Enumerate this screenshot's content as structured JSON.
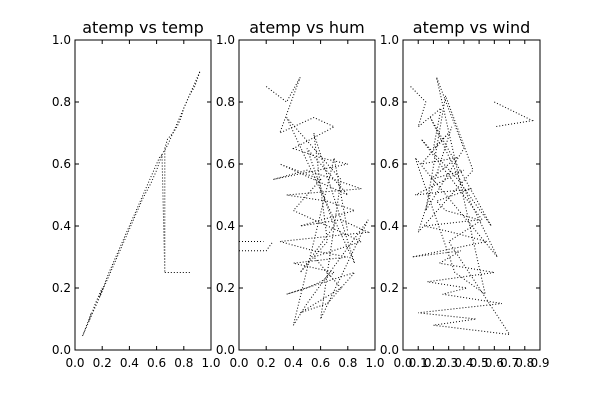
{
  "chart_data": [
    {
      "type": "line",
      "title": "atemp vs temp",
      "xlabel": "",
      "ylabel": "",
      "xlim": [
        0,
        1.0
      ],
      "ylim": [
        0,
        1.0
      ],
      "x_ticks": [
        "0.0",
        "0.2",
        "0.4",
        "0.6",
        "0.8",
        "1.0"
      ],
      "y_ticks": [
        "0.0",
        "0.2",
        "0.4",
        "0.6",
        "0.8",
        "1.0"
      ],
      "style": "dotted",
      "color": "#000000",
      "series": [
        {
          "x": [
            0.06,
            0.12,
            0.1,
            0.15,
            0.2,
            0.18,
            0.25,
            0.3,
            0.35,
            0.4,
            0.45,
            0.5,
            0.55,
            0.58,
            0.6,
            0.62,
            0.64,
            0.66,
            0.66,
            0.68,
            0.72,
            0.75,
            0.78,
            0.8,
            0.82,
            0.85,
            0.88,
            0.9,
            0.92,
            0.88,
            0.84,
            0.8,
            0.76,
            0.72,
            0.68,
            0.64,
            0.6,
            0.56,
            0.5,
            0.44,
            0.38,
            0.32,
            0.26,
            0.2,
            0.16,
            0.12,
            0.08,
            0.05
          ],
          "y": [
            0.05,
            0.12,
            0.09,
            0.15,
            0.2,
            0.17,
            0.25,
            0.3,
            0.35,
            0.4,
            0.45,
            0.5,
            0.55,
            0.58,
            0.6,
            0.62,
            0.63,
            0.25,
            0.65,
            0.68,
            0.7,
            0.72,
            0.75,
            0.78,
            0.8,
            0.83,
            0.86,
            0.88,
            0.9,
            0.85,
            0.82,
            0.78,
            0.74,
            0.7,
            0.66,
            0.63,
            0.58,
            0.54,
            0.49,
            0.43,
            0.37,
            0.31,
            0.25,
            0.19,
            0.15,
            0.11,
            0.07,
            0.04
          ]
        },
        {
          "x": [
            0.66,
            0.68,
            0.85
          ],
          "y": [
            0.25,
            0.25,
            0.25
          ]
        }
      ]
    },
    {
      "type": "line",
      "title": "atemp vs hum",
      "xlabel": "",
      "ylabel": "",
      "xlim": [
        0,
        1.0
      ],
      "ylim": [
        0,
        1.0
      ],
      "x_ticks": [
        "0.0",
        "0.2",
        "0.4",
        "0.6",
        "0.8",
        "1.0"
      ],
      "y_ticks": [
        "0.0",
        "0.2",
        "0.4",
        "0.6",
        "0.8",
        "1.0"
      ],
      "style": "dotted",
      "color": "#000000",
      "series": [
        {
          "x": [
            0.2,
            0.35,
            0.45,
            0.3,
            0.55,
            0.7,
            0.4,
            0.6,
            0.8,
            0.25,
            0.5,
            0.9,
            0.35,
            0.65,
            0.85,
            0.45,
            0.75,
            0.95,
            0.3,
            0.55,
            0.8,
            0.4,
            0.7,
            0.6,
            0.5,
            0.35,
            0.85,
            0.65,
            0.45,
            0.75,
            0.55,
            0.9,
            0.4,
            0.6,
            0.3,
            0.8,
            0.5,
            0.7,
            0.45,
            0.65,
            0.55,
            0.85,
            0.35,
            0.75,
            0.6,
            0.95,
            0.5,
            0.4,
            0.7,
            0.8
          ],
          "y": [
            0.85,
            0.8,
            0.88,
            0.7,
            0.75,
            0.72,
            0.65,
            0.62,
            0.6,
            0.55,
            0.58,
            0.52,
            0.5,
            0.48,
            0.45,
            0.4,
            0.42,
            0.38,
            0.35,
            0.32,
            0.3,
            0.28,
            0.25,
            0.22,
            0.2,
            0.18,
            0.25,
            0.15,
            0.12,
            0.2,
            0.3,
            0.35,
            0.45,
            0.55,
            0.6,
            0.5,
            0.65,
            0.4,
            0.25,
            0.35,
            0.7,
            0.28,
            0.75,
            0.55,
            0.1,
            0.42,
            0.15,
            0.08,
            0.62,
            0.38
          ]
        },
        {
          "x": [
            0.0,
            0.2,
            0.25
          ],
          "y": [
            0.32,
            0.32,
            0.35
          ]
        },
        {
          "x": [
            0.0,
            0.18
          ],
          "y": [
            0.35,
            0.35
          ]
        }
      ]
    },
    {
      "type": "line",
      "title": "atemp vs wind",
      "xlabel": "",
      "ylabel": "",
      "xlim": [
        0,
        0.9
      ],
      "ylim": [
        0,
        1.0
      ],
      "x_ticks": [
        "0.0",
        "0.1",
        "0.2",
        "0.3",
        "0.4",
        "0.5",
        "0.6",
        "0.7",
        "0.8",
        "0.9"
      ],
      "y_ticks": [
        "0.0",
        "0.2",
        "0.4",
        "0.6",
        "0.8",
        "1.0"
      ],
      "style": "dotted",
      "color": "#000000",
      "series": [
        {
          "x": [
            0.05,
            0.15,
            0.1,
            0.25,
            0.2,
            0.3,
            0.12,
            0.35,
            0.18,
            0.4,
            0.08,
            0.45,
            0.22,
            0.28,
            0.5,
            0.14,
            0.32,
            0.55,
            0.06,
            0.38,
            0.24,
            0.6,
            0.16,
            0.42,
            0.26,
            0.65,
            0.1,
            0.48,
            0.2,
            0.7,
            0.3,
            0.52,
            0.12,
            0.36,
            0.58,
            0.18,
            0.44,
            0.62,
            0.08,
            0.34,
            0.54,
            0.22,
            0.4,
            0.15,
            0.28,
            0.46,
            0.1,
            0.32
          ],
          "y": [
            0.85,
            0.8,
            0.72,
            0.78,
            0.65,
            0.7,
            0.6,
            0.62,
            0.55,
            0.58,
            0.5,
            0.52,
            0.48,
            0.45,
            0.42,
            0.4,
            0.38,
            0.35,
            0.3,
            0.32,
            0.28,
            0.25,
            0.22,
            0.2,
            0.18,
            0.15,
            0.12,
            0.1,
            0.08,
            0.05,
            0.35,
            0.42,
            0.68,
            0.55,
            0.4,
            0.75,
            0.48,
            0.3,
            0.62,
            0.25,
            0.18,
            0.88,
            0.65,
            0.45,
            0.82,
            0.58,
            0.38,
            0.72
          ]
        },
        {
          "x": [
            0.6,
            0.85,
            0.6
          ],
          "y": [
            0.8,
            0.74,
            0.72
          ]
        }
      ]
    }
  ]
}
